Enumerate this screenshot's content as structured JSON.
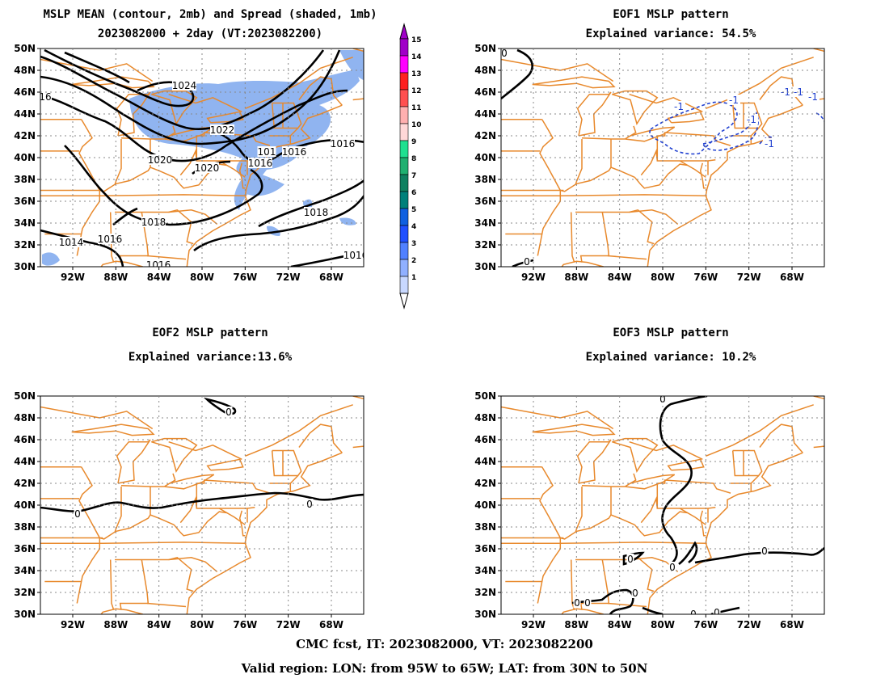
{
  "panels": [
    {
      "id": "p1",
      "title_lines": [
        "MSLP MEAN (contour, 2mb) and Spread (shaded, 1mb)",
        "2023082000 + 2day (VT:2023082200)"
      ],
      "contour_labels": [
        "1024",
        "1022",
        "1020",
        "1020",
        "1018",
        "1018",
        "1016",
        "1016",
        "1016",
        "1016",
        "1016",
        "1014",
        "1016",
        "101",
        "1016",
        "16"
      ]
    },
    {
      "id": "p2",
      "title_lines": [
        "EOF1 MSLP pattern",
        "Explained variance: 54.5%"
      ],
      "contour_labels": [
        "0",
        "0",
        "-1",
        "-1",
        "-1",
        "-1",
        "-1",
        "-1",
        "-1"
      ]
    },
    {
      "id": "p3",
      "title_lines": [
        "EOF2 MSLP pattern",
        "Explained variance:13.6%"
      ],
      "contour_labels": [
        "0",
        "0",
        "0"
      ]
    },
    {
      "id": "p4",
      "title_lines": [
        "EOF3 MSLP pattern",
        "Explained variance: 10.2%"
      ],
      "contour_labels": [
        "0",
        "0",
        "0",
        "0",
        "0",
        "0",
        "0",
        "0",
        "0"
      ]
    }
  ],
  "axes": {
    "lat_labels": [
      "50N",
      "48N",
      "46N",
      "44N",
      "42N",
      "40N",
      "38N",
      "36N",
      "34N",
      "32N",
      "30N"
    ],
    "lon_labels": [
      "92W",
      "88W",
      "84W",
      "80W",
      "76W",
      "72W",
      "68W"
    ],
    "lon_range": [
      -95,
      -65
    ],
    "lat_range": [
      30,
      50
    ]
  },
  "colorbar": {
    "labels": [
      "15",
      "14",
      "13",
      "12",
      "11",
      "10",
      "9",
      "8",
      "7",
      "6",
      "5",
      "4",
      "3",
      "2",
      "1"
    ],
    "colors": [
      "#a000c8",
      "#ff00ff",
      "#ff2020",
      "#ff5050",
      "#ffb0b0",
      "#ffd8d8",
      "#20e090",
      "#20b070",
      "#108060",
      "#00807a",
      "#1060e0",
      "#2050ff",
      "#5080ff",
      "#90b0ff",
      "#c8d8ff"
    ]
  },
  "colors": {
    "coast": "#e8892c",
    "spread": "#90b4f0",
    "contour": "#000000",
    "neg_contour": "#2040d0",
    "grid": "#888888"
  },
  "footer": {
    "line1": "CMC fcst, IT: 2023082000, VT: 2023082200",
    "line2": "Valid region: LON: from 95W to 65W; LAT: from 30N to 50N"
  }
}
